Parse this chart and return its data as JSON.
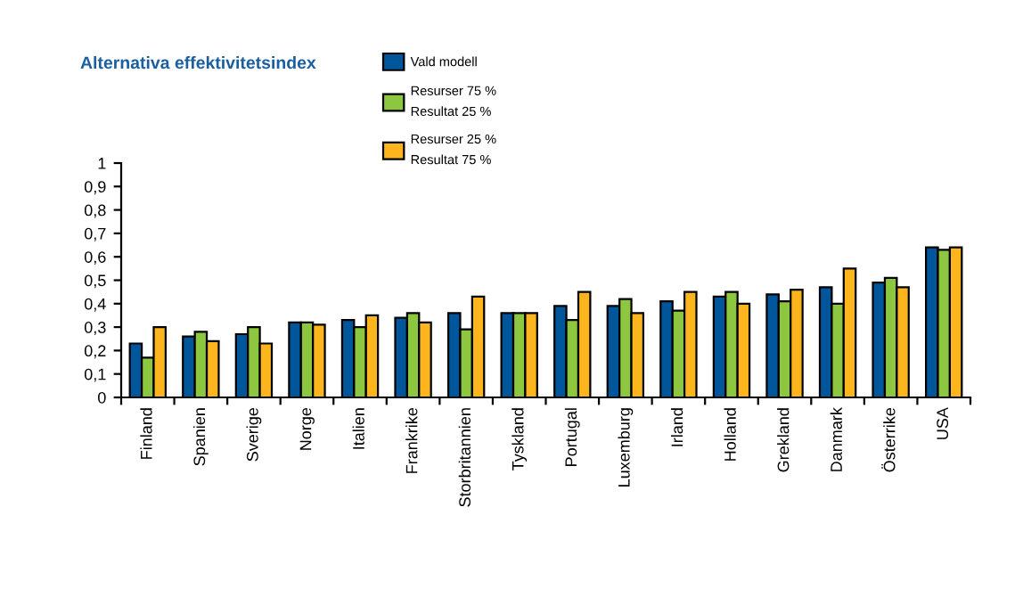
{
  "chart_data": {
    "type": "bar",
    "title": "Alternativa effektivitetsindex",
    "categories": [
      "Finland",
      "Spanien",
      "Sverige",
      "Norge",
      "Italien",
      "Frankrike",
      "Storbritannien",
      "Tyskland",
      "Portugal",
      "Luxemburg",
      "Irland",
      "Holland",
      "Grekland",
      "Danmark",
      "Österrike",
      "USA"
    ],
    "series": [
      {
        "name": "Vald modell",
        "color": "#00569a",
        "values": [
          0.23,
          0.26,
          0.27,
          0.32,
          0.33,
          0.34,
          0.36,
          0.36,
          0.39,
          0.39,
          0.41,
          0.43,
          0.44,
          0.47,
          0.49,
          0.64
        ]
      },
      {
        "name": "Resurser 75 %\nResultat 25 %",
        "color": "#8dc63f",
        "values": [
          0.17,
          0.28,
          0.3,
          0.32,
          0.3,
          0.36,
          0.29,
          0.36,
          0.33,
          0.42,
          0.37,
          0.45,
          0.41,
          0.4,
          0.51,
          0.63
        ]
      },
      {
        "name": "Resurser 25 %\nResultat 75 %",
        "color": "#fdb51d",
        "values": [
          0.3,
          0.24,
          0.23,
          0.31,
          0.35,
          0.32,
          0.43,
          0.36,
          0.45,
          0.36,
          0.45,
          0.4,
          0.46,
          0.55,
          0.47,
          0.64
        ]
      }
    ],
    "ylim": [
      0,
      1
    ],
    "yticks": [
      0,
      {
        "value": 0.1,
        "label": "0,1"
      },
      {
        "value": 0.2,
        "label": "0,2"
      },
      {
        "value": 0.3,
        "label": "0,3"
      },
      {
        "value": 0.4,
        "label": "0,4"
      },
      {
        "value": 0.5,
        "label": "0,5"
      },
      {
        "value": 0.6,
        "label": "0,6"
      },
      {
        "value": 0.7,
        "label": "0,7"
      },
      {
        "value": 0.8,
        "label": "0,8"
      },
      {
        "value": 0.9,
        "label": "0,9"
      },
      1
    ],
    "grid": false,
    "legend": "top"
  }
}
